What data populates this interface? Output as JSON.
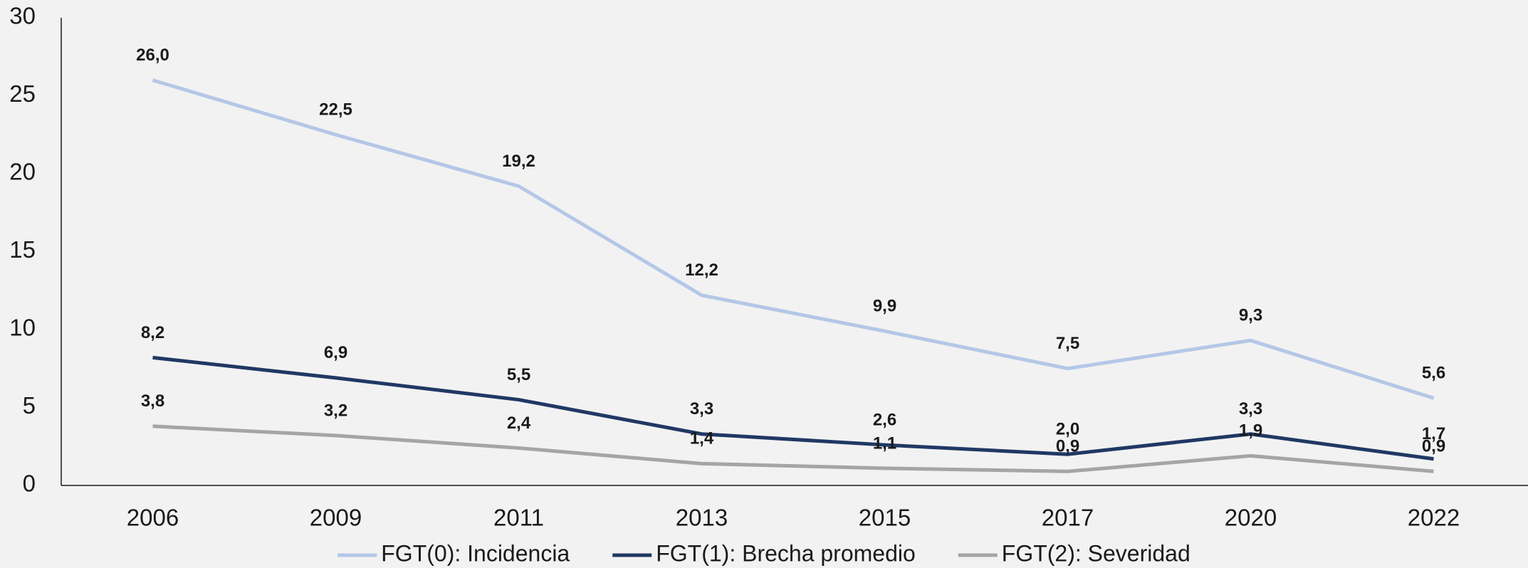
{
  "chart_data": {
    "type": "line",
    "categories": [
      "2006",
      "2009",
      "2011",
      "2013",
      "2015",
      "2017",
      "2020",
      "2022"
    ],
    "series": [
      {
        "name": "FGT(0): Incidencia",
        "color": "#b4c7e7",
        "values": [
          26.0,
          22.5,
          19.2,
          12.2,
          9.9,
          7.5,
          9.3,
          5.6
        ],
        "value_labels": [
          "26,0",
          "22,5",
          "19,2",
          "12,2",
          "9,9",
          "7,5",
          "9,3",
          "5,6"
        ]
      },
      {
        "name": "FGT(1): Brecha promedio",
        "color": "#203864",
        "values": [
          8.2,
          6.9,
          5.5,
          3.3,
          2.6,
          2.0,
          3.3,
          1.7
        ],
        "value_labels": [
          "8,2",
          "6,9",
          "5,5",
          "3,3",
          "2,6",
          "2,0",
          "3,3",
          "1,7"
        ]
      },
      {
        "name": "FGT(2): Severidad",
        "color": "#a5a5a5",
        "values": [
          3.8,
          3.2,
          2.4,
          1.4,
          1.1,
          0.9,
          1.9,
          0.9
        ],
        "value_labels": [
          "3,8",
          "3,2",
          "2,4",
          "1,4",
          "1,1",
          "0,9",
          "1,9",
          "0,9"
        ]
      }
    ],
    "ylim": [
      0,
      30
    ],
    "yticks": [
      0,
      5,
      10,
      15,
      20,
      25,
      30
    ],
    "grid": false,
    "legend": "bottom"
  }
}
